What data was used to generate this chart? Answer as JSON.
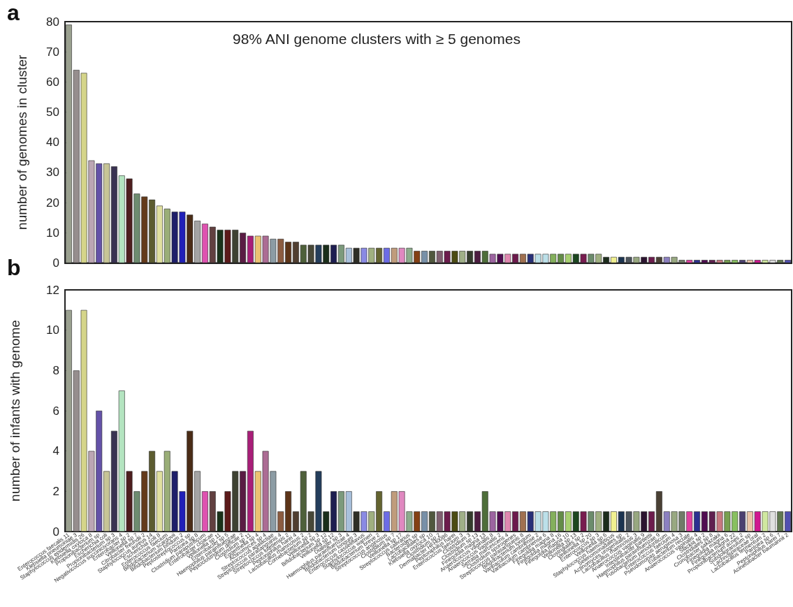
{
  "chart_data": [
    {
      "type": "bar",
      "title": "98% ANI genome clusters with ≥ 5 genomes",
      "annotations": [
        "a"
      ],
      "ylabel": "number of genomes in cluster",
      "tick_labels": "y",
      "ylim": [
        0,
        80
      ],
      "yticks": [
        0,
        10,
        20,
        30,
        40,
        50,
        60,
        70,
        80
      ],
      "categories": [
        null,
        null,
        null,
        null,
        null,
        null,
        null,
        null,
        null,
        null,
        null,
        null,
        null,
        null,
        null,
        null,
        null,
        null,
        null,
        null,
        null,
        null,
        null,
        null,
        null,
        null,
        null,
        null,
        null,
        null,
        null,
        null,
        null,
        null,
        null,
        null,
        null,
        null,
        null,
        null,
        null,
        null,
        null,
        null,
        null,
        null,
        null,
        null,
        null,
        null,
        null,
        null,
        null,
        null,
        null,
        null,
        null,
        null,
        null,
        null,
        null,
        null,
        null,
        null,
        null,
        null,
        null,
        null,
        null,
        null,
        null,
        null,
        null,
        null,
        null,
        null,
        null,
        null,
        null,
        null,
        null,
        null,
        null,
        null,
        null,
        null,
        null,
        null,
        null,
        null,
        null,
        null,
        null,
        null,
        null,
        null
      ],
      "values": [
        79,
        64,
        63,
        34,
        33,
        33,
        32,
        29,
        28,
        23,
        22,
        21,
        19,
        18,
        17,
        17,
        16,
        14,
        13,
        12,
        11,
        11,
        11,
        10,
        9,
        9,
        9,
        8,
        8,
        7,
        7,
        6,
        6,
        6,
        6,
        6,
        6,
        5,
        5,
        5,
        5,
        5,
        5,
        5,
        5,
        5,
        4,
        4,
        4,
        4,
        4,
        4,
        4,
        4,
        4,
        4,
        3,
        3,
        3,
        3,
        3,
        3,
        3,
        3,
        3,
        3,
        3,
        3,
        3,
        3,
        3,
        2,
        2,
        2,
        2,
        2,
        2,
        2,
        2,
        2,
        2,
        1,
        1,
        1,
        1,
        1,
        1,
        1,
        1,
        1,
        1,
        1,
        1,
        1,
        1,
        1
      ],
      "colors": [
        "#9aa08f",
        "#968e8e",
        "#d5d58a",
        "#bca6b4",
        "#6452a8",
        "#c7c596",
        "#3a3252",
        "#b4e4c0",
        "#4e1e1e",
        "#6e8c70",
        "#643a1a",
        "#5c5c30",
        "#e0e0a0",
        "#9aae78",
        "#1e1e6a",
        "#2020b8",
        "#4a2c16",
        "#a4a4a4",
        "#de52b0",
        "#624040",
        "#1a321a",
        "#5c1a1a",
        "#3e4232",
        "#5a1c44",
        "#a81e78",
        "#ecc272",
        "#ac6c94",
        "#8c9ca4",
        "#8c5c40",
        "#5c3418",
        "#503e30",
        "#4e603a",
        "#484838",
        "#243e5c",
        "#1a2e1a",
        "#1e1e50",
        "#7c9a7c",
        "#a8c0dc",
        "#2e2e26",
        "#8a8ae4",
        "#a0b080",
        "#646430",
        "#6c6ce6",
        "#c09c7c",
        "#e088c0",
        "#8cac8c",
        "#844014",
        "#7890a8",
        "#50583e",
        "#806070",
        "#6c1c4c",
        "#4c4c14",
        "#a0b088",
        "#343c2c",
        "#4c1c40",
        "#4e6e3a",
        "#9c64a0",
        "#500c50",
        "#e088b0",
        "#6c1a4c",
        "#a07050",
        "#283078",
        "#bce0e8",
        "#bce0e9",
        "#84b05c",
        "#648c48",
        "#a8d070",
        "#1c4620",
        "#781c50",
        "#6c8c6c",
        "#a0b081",
        "#1c2c1c",
        "#f0f090",
        "#1c3450",
        "#4c545c",
        "#98a880",
        "#2c1430",
        "#6c1c4d",
        "#4a4034",
        "#8c80c0",
        "#98a881",
        "#707c68",
        "#e040a0",
        "#2c3090",
        "#500c51",
        "#602050",
        "#c87880",
        "#78a050",
        "#88c060",
        "#4c4070",
        "#ecc4a8",
        "#d01890",
        "#d0e8a0",
        "#e0e0e0",
        "#607850",
        "#5050b0"
      ]
    },
    {
      "type": "bar",
      "annotations": [
        "b"
      ],
      "ylabel": "number of infants with genome",
      "ylim": [
        0,
        12
      ],
      "yticks": [
        0,
        2,
        4,
        6,
        8,
        10,
        12
      ],
      "categories": [
        "Enterococcus faecalis 11",
        "Klebsiella pneumoniae 3",
        "Staphylococcus epidermidis 26",
        "Klebsiella oxytoca 8",
        "Propionibacterium sp",
        "Escherichia coli",
        "Propionibacterium sp 3",
        "Negativicoccus succinicivorans 4",
        "Enterobacter sp 2",
        "Veillonella sp 7",
        "Citrobacter freundii 2",
        "Staphylococcus aureus 14",
        "Escherichia coli 8",
        "Enterococcus faecium",
        "Bifidobacterium scardovii",
        "Bifidobacterium bifidum 2",
        "Peptostreptococcus sp",
        "Pantoea sp 8",
        "Clostridium paraputrificum",
        "Enterobacter cloacae",
        "Veillonella sp 11",
        "Enterobacter sp 5",
        "Haemophilus parainfluenzae",
        "Peptoclostridium difficile 2",
        "Clostridium sp 11",
        "Eggerthella sp 4",
        "Actinomyces sp 4",
        "Streptococcus agalactiae",
        "Streptococcus parasanguinis 4",
        "Streptococcus lutetiensis 2",
        "Peptoniphilus harei 4",
        "Lactobacillus rhamnosus 2",
        "Cornebacterium sp 2",
        "Veillonella sp 3",
        "Bifidobacterium sp 12",
        "Veillonella sp 12",
        "Dialister sp 3",
        "Haemophilus parainfluenzae 4",
        "Bifidobacterium longum 3",
        "Enterococcus casseliflavus",
        "Staphylococcus warneri",
        "Bifidobacterium breve 2",
        "Streptococcus anginosus",
        "Clostridium sp 7",
        "Veillonella sp 17",
        "Streptococcus salivarius",
        "Bacteroides sp",
        "Lactobacillales sp",
        "Klebsiella oxytoca 10",
        "Clostridium sp 2",
        "Dermabacter HFH0086",
        "Peptoniphilus harei",
        "Enterococcus faecium 3",
        "Clostridium 3",
        "Clostridium sp 13",
        "Finegoldia magna 13",
        "Anaerococcus vaginalis 8",
        "Anaerococcus vaginalis 2",
        "Serratia marcescens 4",
        "Clostridium sporogenes",
        "Streptococcus parasanguinis 8",
        "Bifidobacterium longum",
        "Varibaculum cambriense 2",
        "Varibaculum cambriense 6",
        "Finegoldia magna 8",
        "Finegoldia magna 16",
        "Finegoldia magna 10",
        "Veillonella sp 13",
        "Clostridiales sp 2",
        "Veillonella sp 20",
        "Enterococcus sp 3",
        "Veillonella sp 6",
        "Staphylococcus haemolyticus",
        "Selenomonadales sp",
        "Actinomyces urogenitalis 2",
        "Lactobacillus rhamnosus 3",
        "Anaerococcus vaginalis 9",
        "Intestinibacter bartlettii",
        "Haemophilus parainfluenzae 9",
        "Fusobacterium periodonticum",
        "Enterococcus faecium 4",
        "Pseudomonas aeruginosa 3",
        "Eubacterium rectale",
        "Anaerococcus vaginalis 4",
        "Slackia sp 2",
        "Clostridiales sp 8",
        "Cronobacter sakazakii",
        "Finegoldia magna 6",
        "Finegoldia magna 22",
        "Propionibacterium acnes 2",
        "Subdoligranulum sp",
        "Lachnospiraceae oral",
        "Lactobacillus fermentum 2",
        "Pantoea sp 6",
        "Peptoniphilus harei 7",
        "Acinetobacter baumannii 2"
      ],
      "values": [
        11,
        8,
        11,
        4,
        6,
        3,
        5,
        7,
        3,
        2,
        3,
        4,
        3,
        4,
        3,
        2,
        5,
        3,
        2,
        2,
        1,
        2,
        3,
        3,
        5,
        3,
        4,
        3,
        1,
        2,
        1,
        3,
        1,
        3,
        1,
        2,
        2,
        2,
        1,
        1,
        1,
        2,
        1,
        2,
        2,
        1,
        1,
        1,
        1,
        1,
        1,
        1,
        1,
        1,
        1,
        2,
        1,
        1,
        1,
        1,
        1,
        1,
        1,
        1,
        1,
        1,
        1,
        1,
        1,
        1,
        1,
        1,
        1,
        1,
        1,
        1,
        1,
        1,
        2,
        1,
        1,
        1,
        1,
        1,
        1,
        1,
        1,
        1,
        1,
        1,
        1,
        1,
        1,
        1,
        1,
        1
      ],
      "colors": [
        "#9aa08f",
        "#968e8e",
        "#d5d58a",
        "#bca6b4",
        "#6452a8",
        "#c7c596",
        "#3a3252",
        "#b4e4c0",
        "#4e1e1e",
        "#6e8c70",
        "#643a1a",
        "#5c5c30",
        "#e0e0a0",
        "#9aae78",
        "#1e1e6a",
        "#2020b8",
        "#4a2c16",
        "#a4a4a4",
        "#de52b0",
        "#624040",
        "#1a321a",
        "#5c1a1a",
        "#3e4232",
        "#5a1c44",
        "#a81e78",
        "#ecc272",
        "#ac6c94",
        "#8c9ca4",
        "#8c5c40",
        "#5c3418",
        "#503e30",
        "#4e603a",
        "#484838",
        "#243e5c",
        "#1a2e1a",
        "#1e1e50",
        "#7c9a7c",
        "#a8c0dc",
        "#2e2e26",
        "#8a8ae4",
        "#a0b080",
        "#646430",
        "#6c6ce6",
        "#c09c7c",
        "#e088c0",
        "#8cac8c",
        "#844014",
        "#7890a8",
        "#50583e",
        "#806070",
        "#6c1c4c",
        "#4c4c14",
        "#a0b088",
        "#343c2c",
        "#4c1c40",
        "#4e6e3a",
        "#9c64a0",
        "#500c50",
        "#e088b0",
        "#6c1a4c",
        "#a07050",
        "#283078",
        "#bce0e8",
        "#bce0e9",
        "#84b05c",
        "#648c48",
        "#a8d070",
        "#1c4620",
        "#781c50",
        "#6c8c6c",
        "#a0b081",
        "#1c2c1c",
        "#f0f090",
        "#1c3450",
        "#4c545c",
        "#98a880",
        "#2c1430",
        "#6c1c4d",
        "#4a4034",
        "#8c80c0",
        "#98a881",
        "#707c68",
        "#e040a0",
        "#2c3090",
        "#500c51",
        "#602050",
        "#c87880",
        "#78a050",
        "#88c060",
        "#4c4070",
        "#ecc4a8",
        "#d01890",
        "#d0e8a0",
        "#e0e0e0",
        "#607850",
        "#5050b0"
      ]
    }
  ]
}
